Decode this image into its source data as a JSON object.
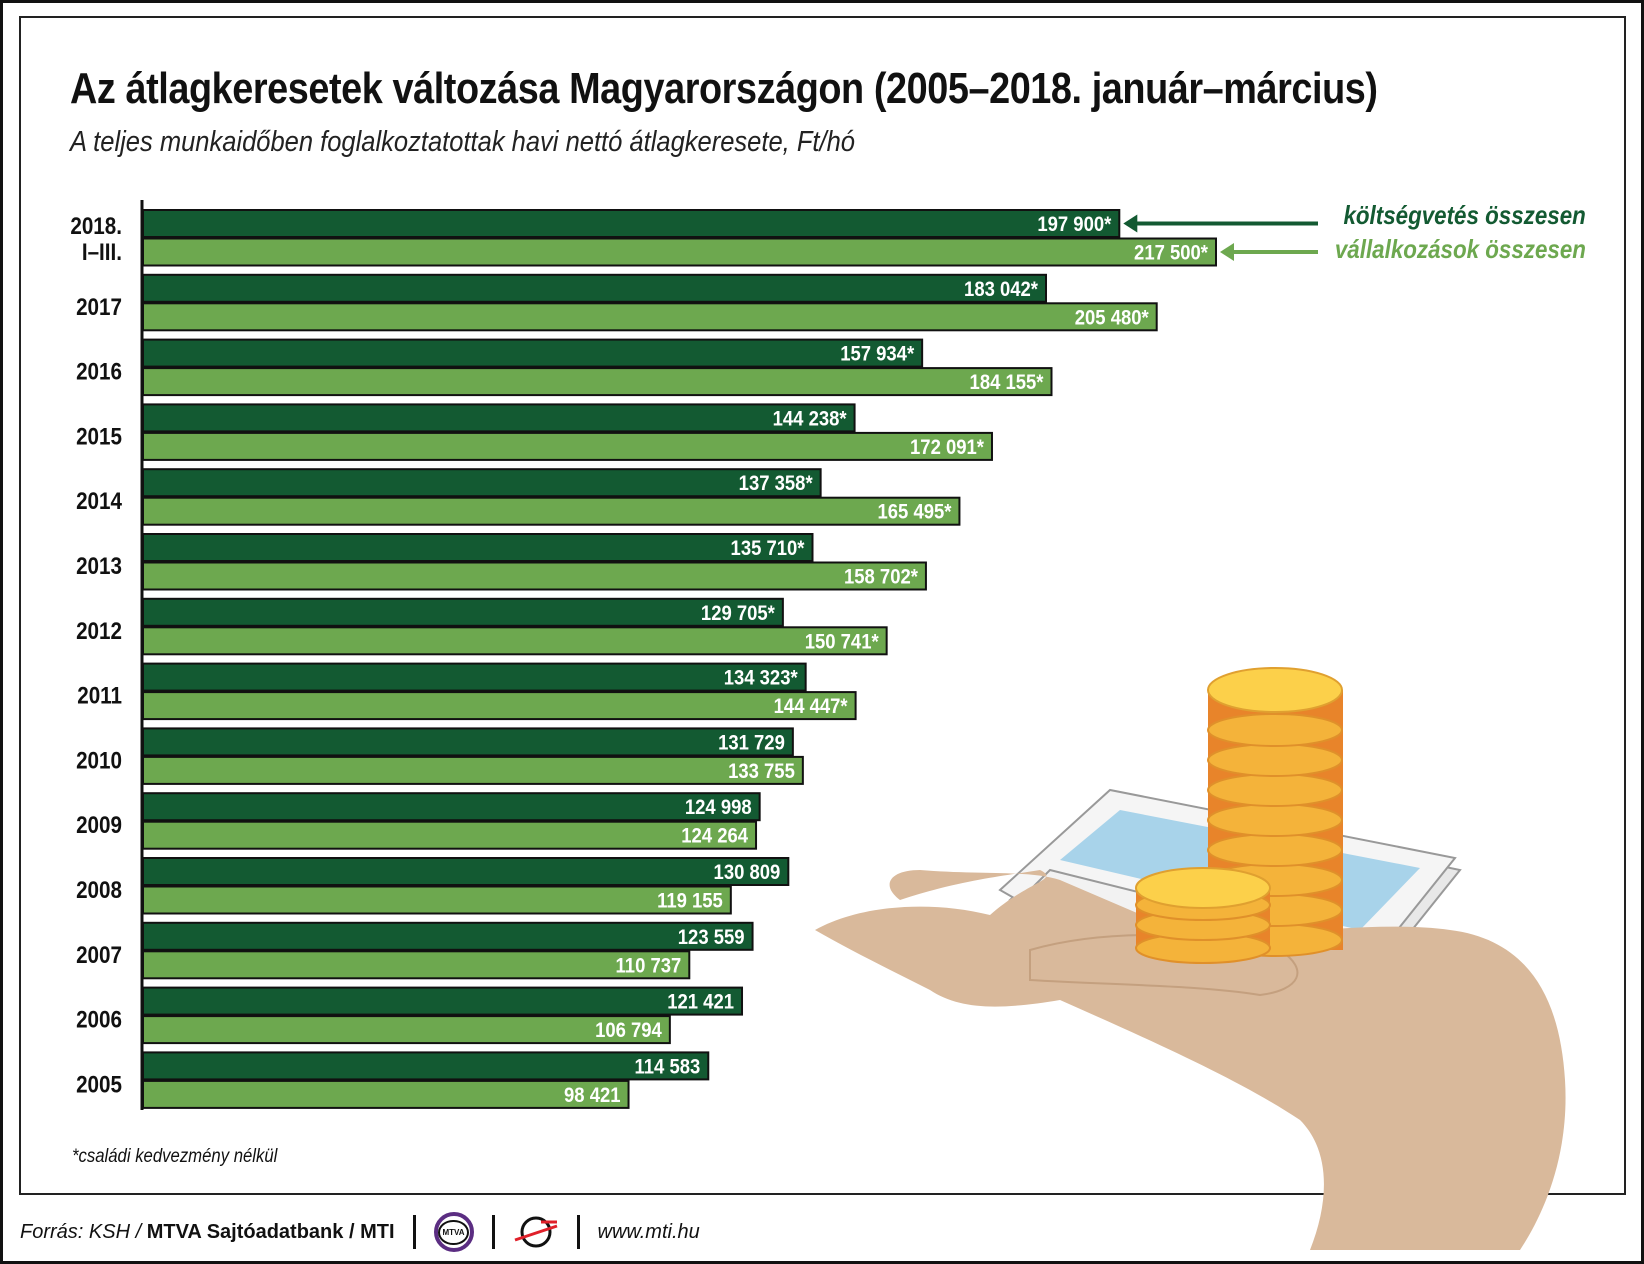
{
  "header": {
    "title": "Az átlagkeresetek változása Magyarországon (2005–2018. január–március)",
    "subtitle": "A teljes munkaidőben foglalkoztatottak havi nettó átlagkeresete, Ft/hó"
  },
  "chart_data": {
    "type": "bar",
    "orientation": "horizontal",
    "title": "Az átlagkeresetek változása Magyarországon (2005–2018. január–március)",
    "subtitle": "A teljes munkaidőben foglalkoztatottak havi nettó átlagkeresete, Ft/hó",
    "xlabel": "",
    "ylabel": "",
    "unit": "Ft/hó",
    "xlim": [
      0,
      217500
    ],
    "grid": false,
    "categories": [
      "2018. I–III.",
      "2017",
      "2016",
      "2015",
      "2014",
      "2013",
      "2012",
      "2011",
      "2010",
      "2009",
      "2008",
      "2007",
      "2006",
      "2005"
    ],
    "category_lines": [
      [
        "2018.",
        "I–III."
      ],
      [
        "2017"
      ],
      [
        "2016"
      ],
      [
        "2015"
      ],
      [
        "2014"
      ],
      [
        "2013"
      ],
      [
        "2012"
      ],
      [
        "2011"
      ],
      [
        "2010"
      ],
      [
        "2009"
      ],
      [
        "2008"
      ],
      [
        "2007"
      ],
      [
        "2006"
      ],
      [
        "2005"
      ]
    ],
    "series": [
      {
        "name": "költségvetés összesen",
        "color": "#135a32",
        "values": [
          197900,
          183042,
          157934,
          144238,
          137358,
          135710,
          129705,
          134323,
          131729,
          124998,
          130809,
          123559,
          121421,
          114583
        ],
        "labels": [
          "197 900*",
          "183 042*",
          "157 934*",
          "144 238*",
          "137 358*",
          "135 710*",
          "129 705*",
          "134 323*",
          "131 729",
          "124 998",
          "130 809",
          "123 559",
          "121 421",
          "114 583"
        ]
      },
      {
        "name": "vállalkozások összesen",
        "color": "#6da84f",
        "values": [
          217500,
          205480,
          184155,
          172091,
          165495,
          158702,
          150741,
          144447,
          133755,
          124264,
          119155,
          110737,
          106794,
          98421
        ],
        "labels": [
          "217 500*",
          "205 480*",
          "184 155*",
          "172 091*",
          "165 495*",
          "158 702*",
          "150 741*",
          "144 447*",
          "133 755",
          "124 264",
          "119 155",
          "110 737",
          "106 794",
          "98 421"
        ]
      }
    ],
    "legend_placement": "top-right",
    "footnote": "*családi kedvezmény nélkül"
  },
  "footer": {
    "source_prefix": "Forrás: KSH / ",
    "source_bold": "MTVA Sajtóadatbank / MTI",
    "logo1_text": "MTVA",
    "url": "www.mti.hu"
  }
}
